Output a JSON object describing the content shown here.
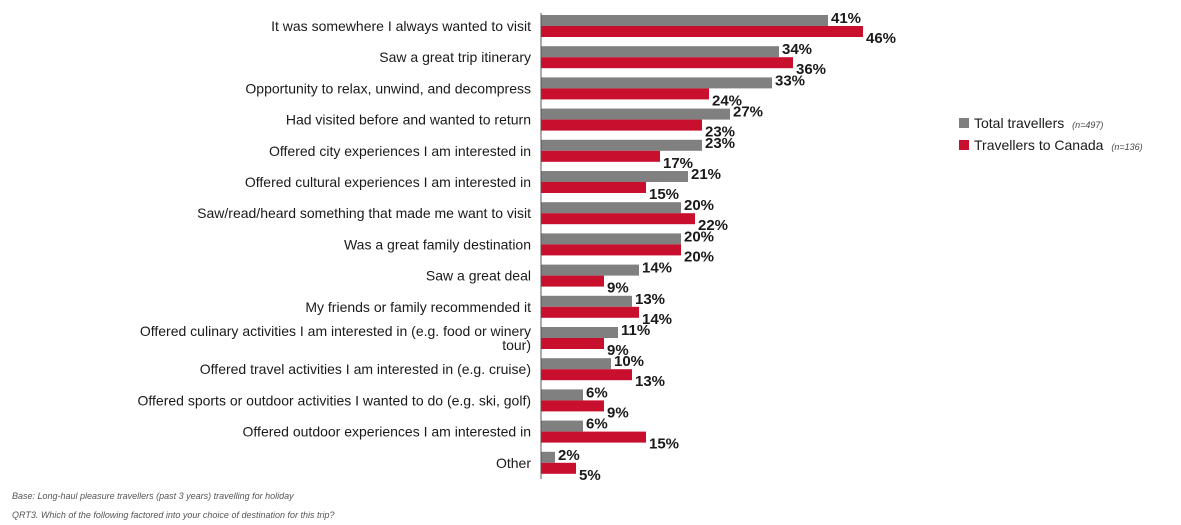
{
  "chart_data": {
    "type": "bar",
    "orientation": "horizontal",
    "categories": [
      "It was somewhere I always wanted to visit",
      "Saw a great trip itinerary",
      "Opportunity to relax, unwind, and decompress",
      "Had visited before and wanted to return",
      "Offered  city experiences I am interested in",
      "Offered cultural experiences I am interested in",
      "Saw/read/heard  something that made me want to visit",
      "Was a great family destination",
      "Saw a great deal",
      "My friends or family recommended it",
      "Offered  culinary activities I am interested in (e.g. food or winery tour)",
      "Offered travel activities I am interested in (e.g. cruise)",
      "Offered  sports or outdoor activities I wanted to do (e.g. ski, golf)",
      "Offered outdoor experiences I am interested in",
      "Other"
    ],
    "series": [
      {
        "name": "Total travellers",
        "n_label": "(n=497)",
        "color": "#808080",
        "values": [
          41,
          34,
          33,
          27,
          23,
          21,
          20,
          20,
          14,
          13,
          11,
          10,
          6,
          6,
          2
        ],
        "labels": [
          "41%",
          "34%",
          "33%",
          "27%",
          "23%",
          "21%",
          "20%",
          "20%",
          "14%",
          "13%",
          "11%",
          "10%",
          "6%",
          "6%",
          "2%"
        ]
      },
      {
        "name": "Travellers  to Canada",
        "n_label": "(n=136)",
        "color": "#c8102e",
        "values": [
          46,
          36,
          24,
          23,
          17,
          15,
          22,
          20,
          9,
          14,
          9,
          13,
          9,
          15,
          5
        ],
        "labels": [
          "46%",
          "36%",
          "24%",
          "23%",
          "17%",
          "15%",
          "22%",
          "20%",
          "9%",
          "14%",
          "9%",
          "13%",
          "9%",
          "15%",
          "5%"
        ]
      }
    ],
    "xlim": [
      0,
      50
    ],
    "grid": false,
    "legend_position": "right"
  },
  "footnotes": {
    "base": "Base: Long-haul pleasure travellers (past 3 years) travelling for holiday",
    "question": "QRT3. Which of the following factored into your choice of destination for this trip?"
  }
}
